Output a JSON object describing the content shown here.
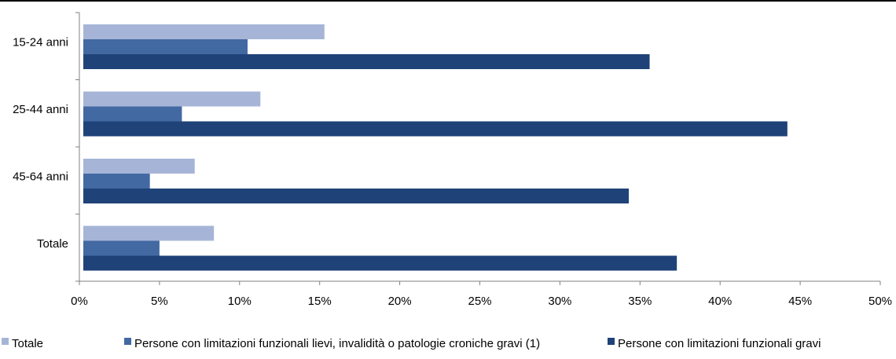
{
  "chart_data": {
    "type": "bar",
    "orientation": "horizontal",
    "categories": [
      "15-24 anni",
      "25-44 anni",
      "45-64 anni",
      "Totale"
    ],
    "series": [
      {
        "name": "Totale",
        "color": "#a6b5d7",
        "values": [
          15.3,
          11.3,
          7.2,
          8.4
        ]
      },
      {
        "name": "Persone con limitazioni funzionali lievi, invalidità o patologie croniche gravi (1)",
        "color": "#4369a3",
        "values": [
          10.5,
          6.4,
          4.4,
          5.0
        ]
      },
      {
        "name": "Persone con limitazioni funzionali gravi",
        "color": "#1f4279",
        "values": [
          35.6,
          44.2,
          34.3,
          37.3
        ]
      }
    ],
    "xlim": [
      0,
      50
    ],
    "xticks": [
      "0%",
      "5%",
      "10%",
      "15%",
      "20%",
      "25%",
      "30%",
      "35%",
      "40%",
      "45%",
      "50%"
    ],
    "xlabel": "",
    "ylabel": "",
    "grid": false,
    "legend_position": "bottom"
  }
}
